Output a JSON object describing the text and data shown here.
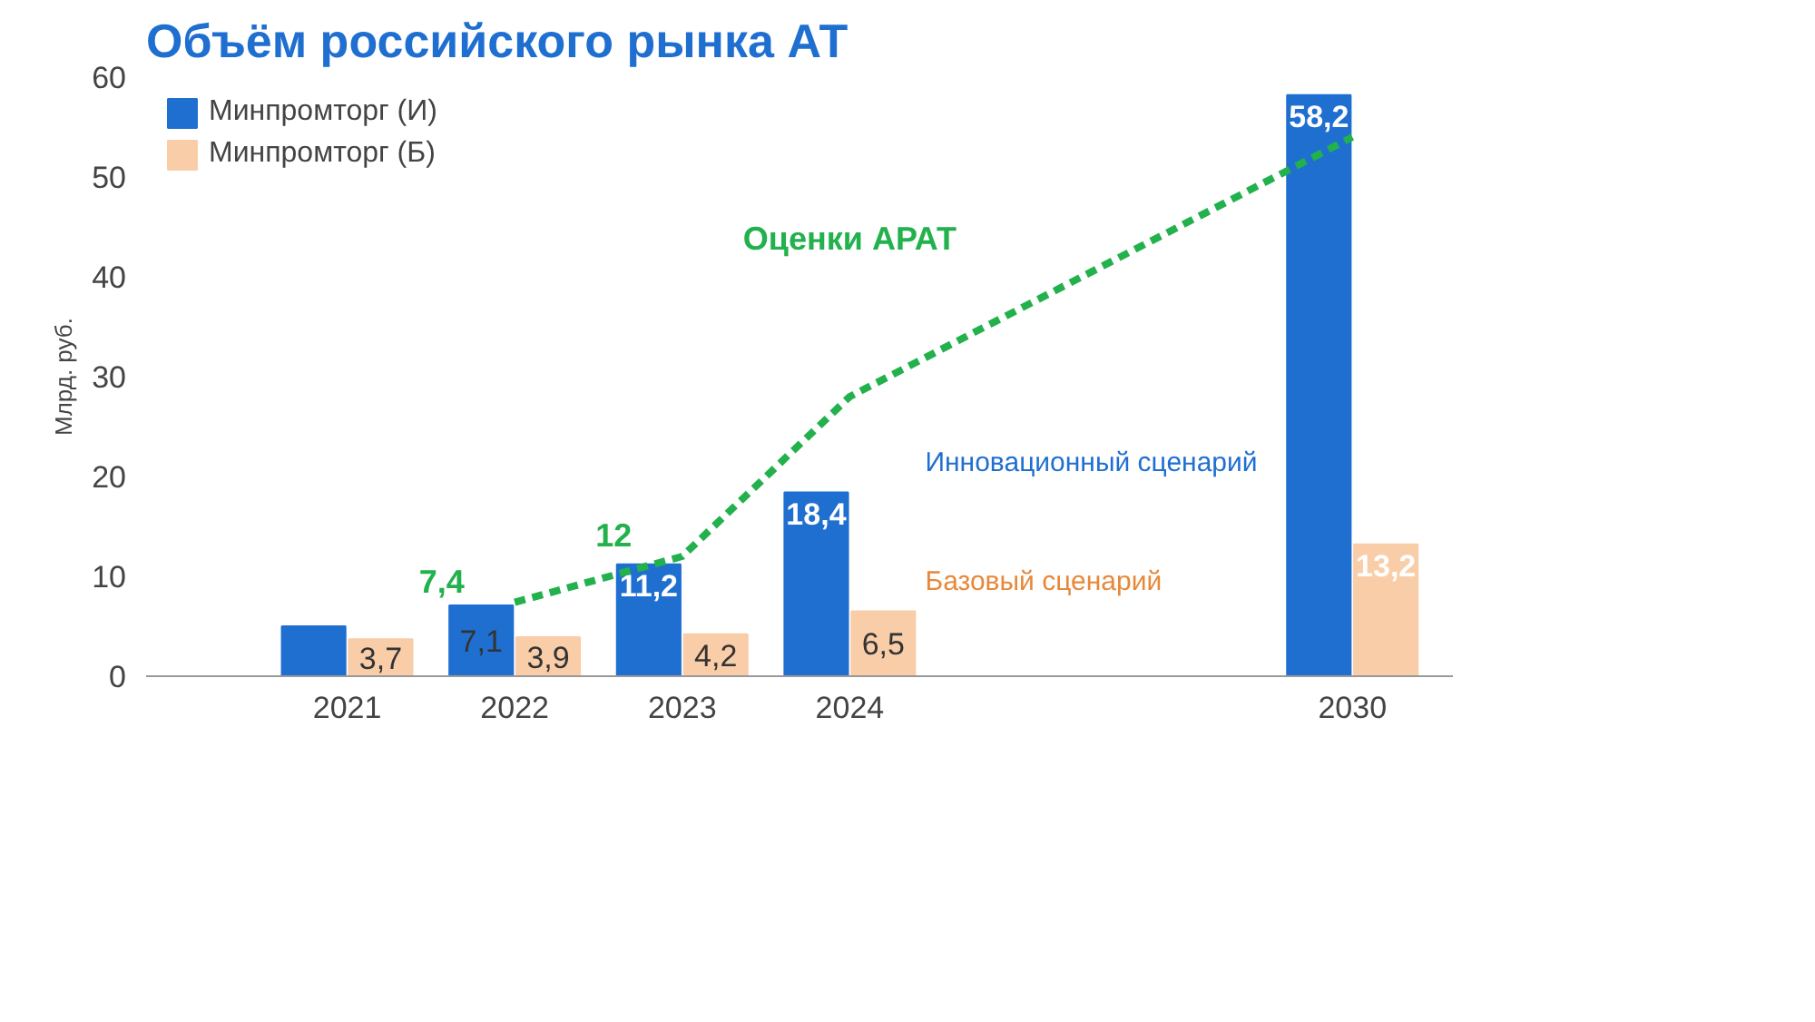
{
  "chart_data": {
    "type": "bar",
    "title": "Объём российского рынка АТ",
    "ylabel": "Млрд. руб.",
    "categories": [
      "2021",
      "2022",
      "2023",
      "2024",
      null,
      null,
      "2030"
    ],
    "series": [
      {
        "name": "Минпромторг (И)",
        "color": "#1f6fd1",
        "values": [
          5,
          7.1,
          11.2,
          18.4,
          null,
          null,
          58.2
        ],
        "value_labels": [
          null,
          "7,1",
          "11,2",
          "18,4",
          null,
          null,
          "58,2"
        ]
      },
      {
        "name": "Минпромторг (Б)",
        "color": "#f9cda8",
        "values": [
          3.7,
          3.9,
          4.2,
          6.5,
          null,
          null,
          13.2
        ],
        "value_labels": [
          "3,7",
          "3,9",
          "4,2",
          "6,5",
          null,
          null,
          "13,2"
        ]
      },
      {
        "name": "Оценки АРАТ",
        "type": "line",
        "color": "#22b14c",
        "line_style": "dashed",
        "values": [
          null,
          7.4,
          12,
          28,
          null,
          null,
          54
        ],
        "value_labels": [
          null,
          "7,4",
          "12",
          null,
          null,
          null,
          null
        ]
      }
    ],
    "annotations": [
      "Инновационный сценарий",
      "Базовый сценарий"
    ],
    "ylim": [
      0,
      60
    ],
    "yticks": [
      0,
      10,
      20,
      30,
      40,
      50,
      60
    ],
    "grid": false,
    "legend": "top left"
  }
}
